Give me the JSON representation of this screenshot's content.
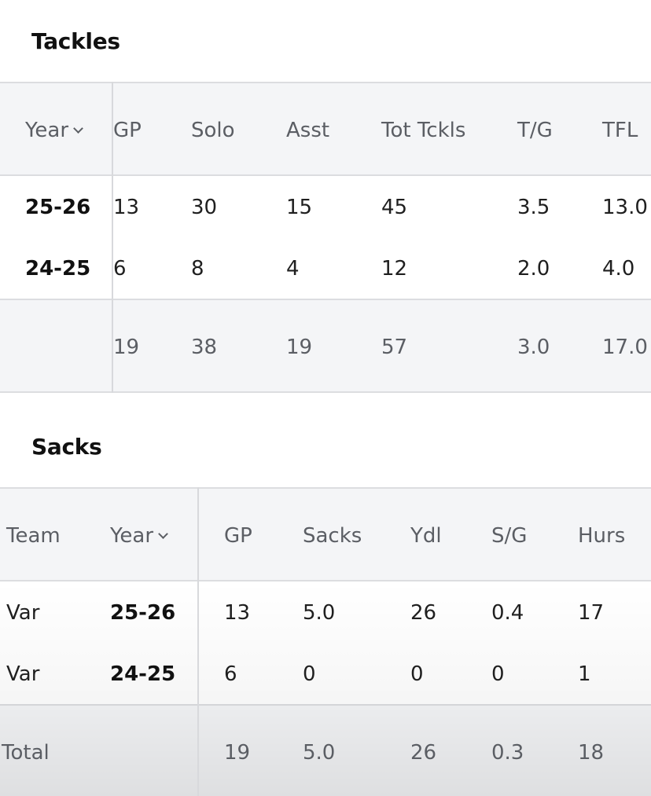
{
  "tackles": {
    "title": "Tackles",
    "year_header": "Year",
    "columns": [
      "GP",
      "Solo",
      "Asst",
      "Tot Tckls",
      "T/G",
      "TFL"
    ],
    "rows": [
      {
        "year": "25-26",
        "values": [
          "13",
          "30",
          "15",
          "45",
          "3.5",
          "13.0"
        ]
      },
      {
        "year": "24-25",
        "values": [
          "6",
          "8",
          "4",
          "12",
          "2.0",
          "4.0"
        ]
      }
    ],
    "total": {
      "label": "",
      "values": [
        "19",
        "38",
        "19",
        "57",
        "3.0",
        "17.0"
      ]
    }
  },
  "sacks": {
    "title": "Sacks",
    "team_header": "Team",
    "year_header": "Year",
    "columns": [
      "GP",
      "Sacks",
      "Ydl",
      "S/G",
      "Hurs"
    ],
    "rows": [
      {
        "team": "Var",
        "year": "25-26",
        "values": [
          "13",
          "5.0",
          "26",
          "0.4",
          "17"
        ]
      },
      {
        "team": "Var",
        "year": "24-25",
        "values": [
          "6",
          "0",
          "0",
          "0",
          "1"
        ]
      }
    ],
    "total": {
      "label": "Total",
      "values": [
        "19",
        "5.0",
        "26",
        "0.3",
        "18"
      ]
    }
  },
  "icons": {
    "sort": "chevron-down-icon"
  }
}
